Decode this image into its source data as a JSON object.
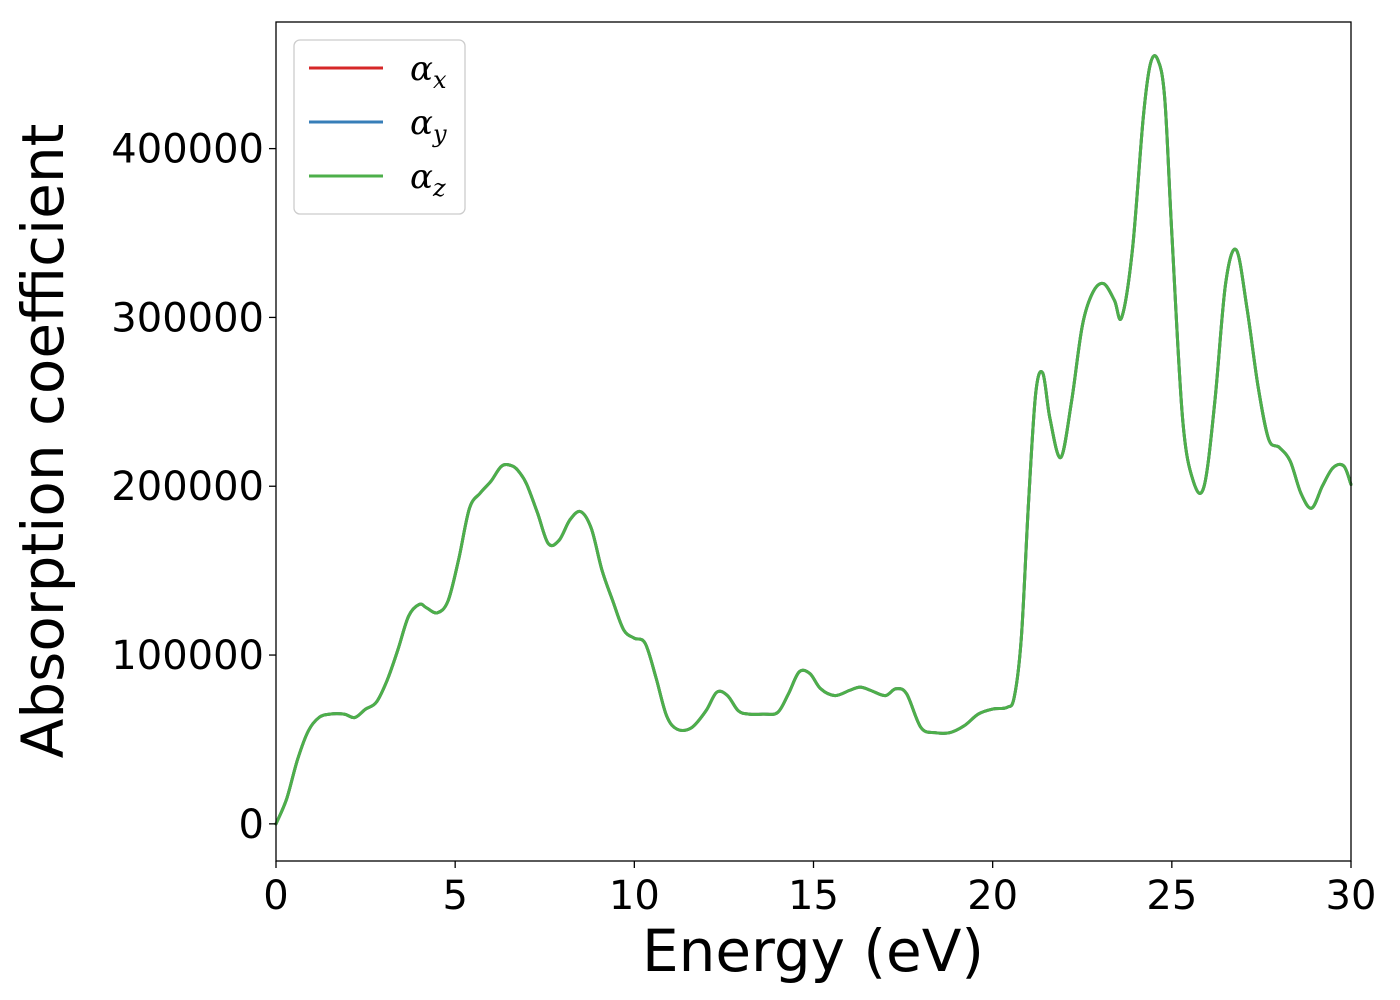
{
  "chart_data": {
    "type": "line",
    "title": "",
    "xlabel": "Energy (eV)",
    "ylabel": "Absorption coefficient",
    "xlim": [
      0,
      30
    ],
    "ylim": [
      -22000,
      475000
    ],
    "xticks": [
      0,
      5,
      10,
      15,
      20,
      25,
      30
    ],
    "xtick_labels": [
      "0",
      "5",
      "10",
      "15",
      "20",
      "25",
      "30"
    ],
    "yticks": [
      0,
      100000,
      200000,
      300000,
      400000
    ],
    "ytick_labels": [
      "0",
      "100000",
      "200000",
      "300000",
      "400000"
    ],
    "grid": false,
    "legend": "upper-left",
    "series": [
      {
        "name": "αx",
        "sym": "α",
        "sub": "x",
        "color": "#d62728",
        "x": [
          0,
          0.3,
          0.6,
          0.9,
          1.2,
          1.5,
          1.9,
          2.2,
          2.5,
          2.8,
          3.1,
          3.4,
          3.7,
          4.0,
          4.2,
          4.5,
          4.8,
          5.1,
          5.4,
          5.7,
          6.0,
          6.3,
          6.6,
          6.8,
          7.0,
          7.3,
          7.6,
          7.9,
          8.2,
          8.5,
          8.8,
          9.1,
          9.4,
          9.7,
          10.0,
          10.3,
          10.6,
          10.9,
          11.2,
          11.6,
          12.0,
          12.3,
          12.6,
          12.9,
          13.2,
          13.6,
          14.0,
          14.3,
          14.6,
          14.9,
          15.2,
          15.6,
          16.0,
          16.3,
          16.6,
          17.0,
          17.3,
          17.6,
          18.0,
          18.4,
          18.8,
          19.2,
          19.6,
          20.0,
          20.4,
          20.6,
          20.8,
          21.0,
          21.2,
          21.4,
          21.6,
          21.9,
          22.2,
          22.5,
          22.8,
          23.1,
          23.4,
          23.6,
          23.9,
          24.2,
          24.4,
          24.6,
          24.8,
          25.0,
          25.3,
          25.6,
          25.9,
          26.2,
          26.5,
          26.8,
          27.1,
          27.4,
          27.7,
          28.0,
          28.3,
          28.6,
          28.9,
          29.2,
          29.5,
          29.8,
          30.0
        ],
        "values": [
          0,
          15000,
          38000,
          55000,
          63000,
          65000,
          65000,
          63000,
          68000,
          72000,
          85000,
          103000,
          123000,
          130000,
          128000,
          125000,
          132000,
          157000,
          187000,
          196000,
          203000,
          212000,
          212000,
          208000,
          201000,
          184000,
          166000,
          168000,
          180000,
          185000,
          175000,
          150000,
          132000,
          115000,
          110000,
          107000,
          87000,
          64000,
          56000,
          57000,
          67000,
          78000,
          76000,
          67000,
          65000,
          65000,
          66000,
          77000,
          90000,
          89000,
          80000,
          76000,
          79000,
          81000,
          79000,
          76000,
          80000,
          77000,
          57000,
          54000,
          54000,
          58000,
          65000,
          68000,
          69000,
          75000,
          110000,
          190000,
          255000,
          267000,
          240000,
          217000,
          250000,
          295000,
          315000,
          320000,
          310000,
          300000,
          340000,
          418000,
          450000,
          453000,
          430000,
          350000,
          240000,
          203000,
          200000,
          250000,
          320000,
          340000,
          305000,
          260000,
          228000,
          223000,
          215000,
          196000,
          187000,
          200000,
          211000,
          212000,
          201000
        ]
      },
      {
        "name": "αy",
        "sym": "α",
        "sub": "y",
        "color": "#377eb8",
        "x": [
          0,
          0.3,
          0.6,
          0.9,
          1.2,
          1.5,
          1.9,
          2.2,
          2.5,
          2.8,
          3.1,
          3.4,
          3.7,
          4.0,
          4.2,
          4.5,
          4.8,
          5.1,
          5.4,
          5.7,
          6.0,
          6.3,
          6.6,
          6.8,
          7.0,
          7.3,
          7.6,
          7.9,
          8.2,
          8.5,
          8.8,
          9.1,
          9.4,
          9.7,
          10.0,
          10.3,
          10.6,
          10.9,
          11.2,
          11.6,
          12.0,
          12.3,
          12.6,
          12.9,
          13.2,
          13.6,
          14.0,
          14.3,
          14.6,
          14.9,
          15.2,
          15.6,
          16.0,
          16.3,
          16.6,
          17.0,
          17.3,
          17.6,
          18.0,
          18.4,
          18.8,
          19.2,
          19.6,
          20.0,
          20.4,
          20.6,
          20.8,
          21.0,
          21.2,
          21.4,
          21.6,
          21.9,
          22.2,
          22.5,
          22.8,
          23.1,
          23.4,
          23.6,
          23.9,
          24.2,
          24.4,
          24.6,
          24.8,
          25.0,
          25.3,
          25.6,
          25.9,
          26.2,
          26.5,
          26.8,
          27.1,
          27.4,
          27.7,
          28.0,
          28.3,
          28.6,
          28.9,
          29.2,
          29.5,
          29.8,
          30.0
        ],
        "values": [
          0,
          15000,
          38000,
          55000,
          63000,
          65000,
          65000,
          63000,
          68000,
          72000,
          85000,
          103000,
          123000,
          130000,
          128000,
          125000,
          132000,
          157000,
          187000,
          196000,
          203000,
          212000,
          212000,
          208000,
          201000,
          184000,
          166000,
          168000,
          180000,
          185000,
          175000,
          150000,
          132000,
          115000,
          110000,
          107000,
          87000,
          64000,
          56000,
          57000,
          67000,
          78000,
          76000,
          67000,
          65000,
          65000,
          66000,
          77000,
          90000,
          89000,
          80000,
          76000,
          79000,
          81000,
          79000,
          76000,
          80000,
          77000,
          57000,
          54000,
          54000,
          58000,
          65000,
          68000,
          69000,
          75000,
          110000,
          190000,
          255000,
          267000,
          240000,
          217000,
          250000,
          295000,
          315000,
          320000,
          310000,
          300000,
          340000,
          418000,
          450000,
          453000,
          430000,
          350000,
          240000,
          203000,
          200000,
          250000,
          320000,
          340000,
          305000,
          260000,
          228000,
          223000,
          215000,
          196000,
          187000,
          200000,
          211000,
          212000,
          201000
        ]
      },
      {
        "name": "αz",
        "sym": "α",
        "sub": "z",
        "color": "#4daf4a",
        "x": [
          0,
          0.3,
          0.6,
          0.9,
          1.2,
          1.5,
          1.9,
          2.2,
          2.5,
          2.8,
          3.1,
          3.4,
          3.7,
          4.0,
          4.2,
          4.5,
          4.8,
          5.1,
          5.4,
          5.7,
          6.0,
          6.3,
          6.6,
          6.8,
          7.0,
          7.3,
          7.6,
          7.9,
          8.2,
          8.5,
          8.8,
          9.1,
          9.4,
          9.7,
          10.0,
          10.3,
          10.6,
          10.9,
          11.2,
          11.6,
          12.0,
          12.3,
          12.6,
          12.9,
          13.2,
          13.6,
          14.0,
          14.3,
          14.6,
          14.9,
          15.2,
          15.6,
          16.0,
          16.3,
          16.6,
          17.0,
          17.3,
          17.6,
          18.0,
          18.4,
          18.8,
          19.2,
          19.6,
          20.0,
          20.4,
          20.6,
          20.8,
          21.0,
          21.2,
          21.4,
          21.6,
          21.9,
          22.2,
          22.5,
          22.8,
          23.1,
          23.4,
          23.6,
          23.9,
          24.2,
          24.4,
          24.6,
          24.8,
          25.0,
          25.3,
          25.6,
          25.9,
          26.2,
          26.5,
          26.8,
          27.1,
          27.4,
          27.7,
          28.0,
          28.3,
          28.6,
          28.9,
          29.2,
          29.5,
          29.8,
          30.0
        ],
        "values": [
          0,
          15000,
          38000,
          55000,
          63000,
          65000,
          65000,
          63000,
          68000,
          72000,
          85000,
          103000,
          123000,
          130000,
          128000,
          125000,
          132000,
          157000,
          187000,
          196000,
          203000,
          212000,
          212000,
          208000,
          201000,
          184000,
          166000,
          168000,
          180000,
          185000,
          175000,
          150000,
          132000,
          115000,
          110000,
          107000,
          87000,
          64000,
          56000,
          57000,
          67000,
          78000,
          76000,
          67000,
          65000,
          65000,
          66000,
          77000,
          90000,
          89000,
          80000,
          76000,
          79000,
          81000,
          79000,
          76000,
          80000,
          77000,
          57000,
          54000,
          54000,
          58000,
          65000,
          68000,
          69000,
          75000,
          110000,
          190000,
          255000,
          267000,
          240000,
          217000,
          250000,
          295000,
          315000,
          320000,
          310000,
          300000,
          340000,
          418000,
          450000,
          453000,
          430000,
          350000,
          240000,
          203000,
          200000,
          250000,
          320000,
          340000,
          305000,
          260000,
          228000,
          223000,
          215000,
          196000,
          187000,
          200000,
          211000,
          212000,
          201000
        ]
      }
    ]
  }
}
